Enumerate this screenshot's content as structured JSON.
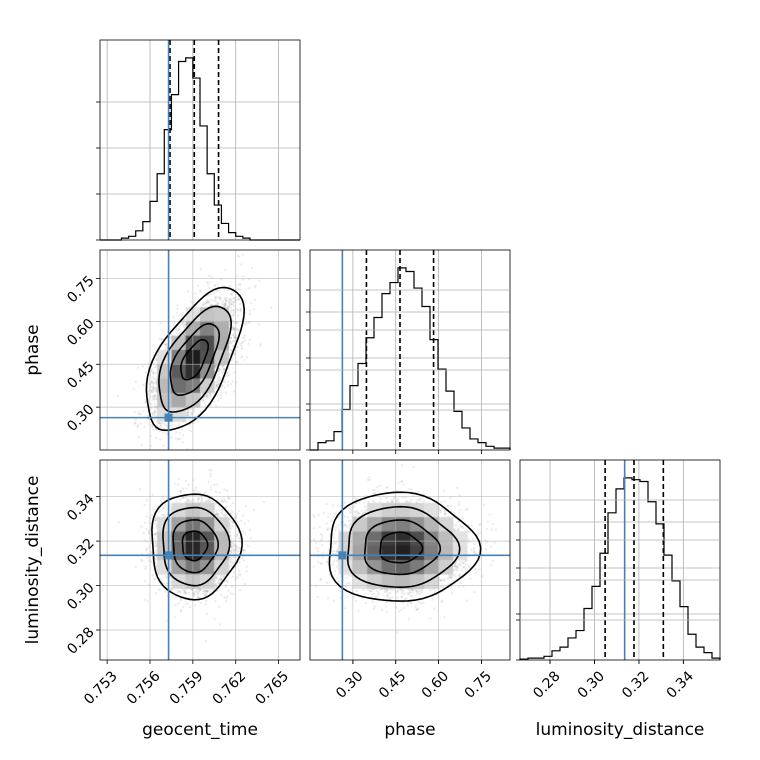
{
  "chart_data": {
    "type": "corner",
    "parameters": [
      "geocent_time",
      "phase",
      "luminosity_distance"
    ],
    "axis_labels": {
      "geocent_time": "geocent_time",
      "phase": "phase",
      "luminosity_distance": "luminosity_distance"
    },
    "ranges": {
      "geocent_time": [
        0.7525,
        0.7665
      ],
      "phase": [
        0.15,
        0.85
      ],
      "luminosity_distance": [
        0.2665,
        0.3565
      ]
    },
    "ticks": {
      "geocent_time": [
        "0.753",
        "0.756",
        "0.759",
        "0.762",
        "0.765"
      ],
      "phase": [
        "0.30",
        "0.45",
        "0.60",
        "0.75"
      ],
      "luminosity_distance": [
        "0.28",
        "0.30",
        "0.32",
        "0.34"
      ]
    },
    "truths": {
      "geocent_time": 0.7573,
      "phase": 0.2633,
      "luminosity_distance": 0.3136
    },
    "quantiles": {
      "geocent_time": [
        0.7574,
        0.7591,
        0.7608
      ],
      "phase": [
        0.3475,
        0.465,
        0.5825
      ],
      "luminosity_distance": [
        0.3048,
        0.3178,
        0.331
      ]
    },
    "histograms": {
      "geocent_time": [
        0,
        0,
        0,
        0.01,
        0.02,
        0.05,
        0.1,
        0.21,
        0.36,
        0.6,
        0.79,
        0.97,
        0.99,
        0.88,
        0.62,
        0.36,
        0.19,
        0.09,
        0.04,
        0.02,
        0.01,
        0,
        0,
        0,
        0,
        0,
        0,
        0
      ],
      "phase": [
        0,
        0.04,
        0.05,
        0.1,
        0.22,
        0.35,
        0.47,
        0.61,
        0.72,
        0.85,
        0.91,
        0.99,
        0.97,
        0.88,
        0.78,
        0.6,
        0.44,
        0.32,
        0.21,
        0.12,
        0.06,
        0.04,
        0.02,
        0.01,
        0.01
      ],
      "luminosity_distance": [
        0.005,
        0.01,
        0.01,
        0.02,
        0.05,
        0.07,
        0.12,
        0.16,
        0.28,
        0.4,
        0.58,
        0.8,
        0.93,
        0.99,
        0.98,
        0.97,
        0.86,
        0.74,
        0.57,
        0.43,
        0.29,
        0.14,
        0.07,
        0.04,
        0.01
      ]
    },
    "joint": [
      {
        "x": "geocent_time",
        "y": "phase",
        "mean": [
          0.7591,
          0.465
        ],
        "sd": [
          0.00135,
          0.1
        ],
        "rho": 0.6
      },
      {
        "x": "geocent_time",
        "y": "luminosity_distance",
        "mean": [
          0.7591,
          0.318
        ],
        "sd": [
          0.00125,
          0.0095
        ],
        "rho": 0.0
      },
      {
        "x": "phase",
        "y": "luminosity_distance",
        "mean": [
          0.465,
          0.317
        ],
        "sd": [
          0.105,
          0.0098
        ],
        "rho": 0.0
      }
    ],
    "truth_color": "#4682b4",
    "line_color": "#000000",
    "grid": true
  }
}
